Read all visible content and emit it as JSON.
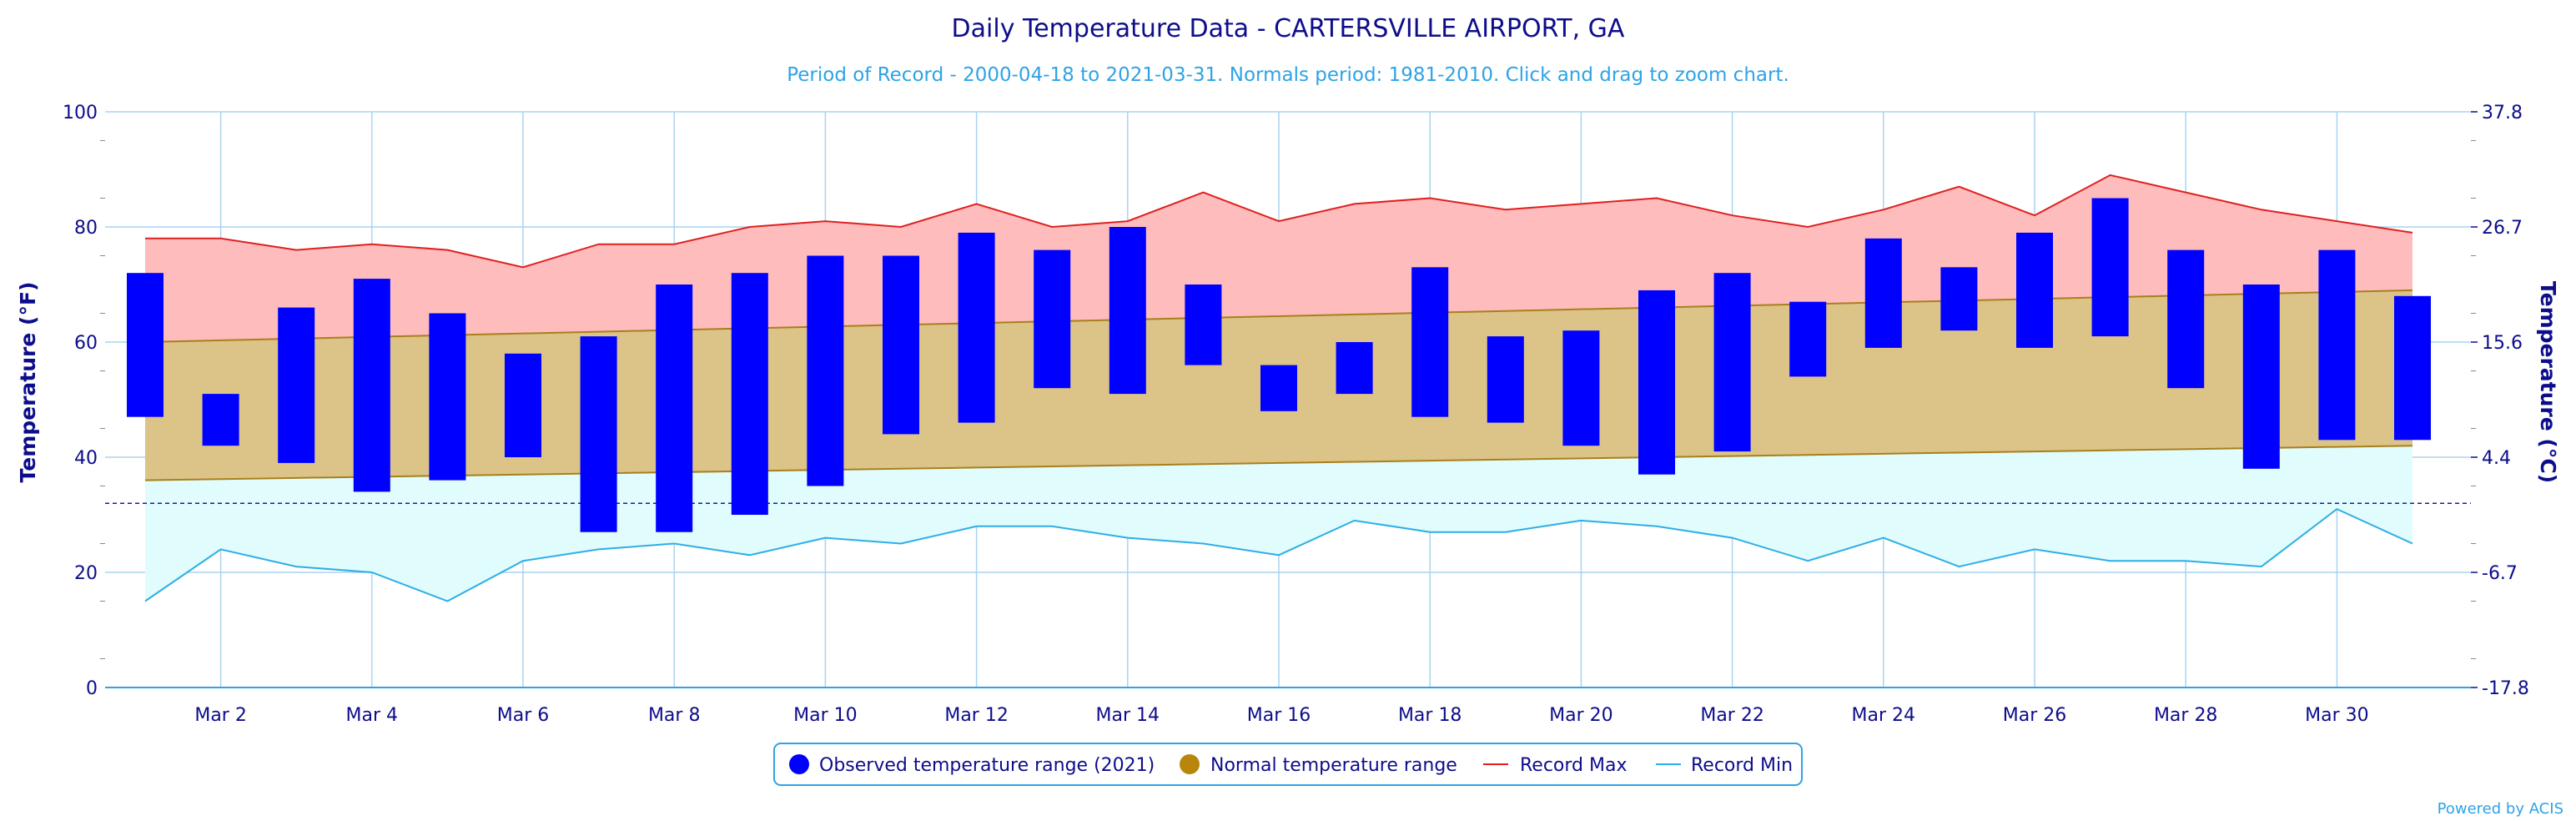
{
  "chart_data": {
    "type": "bar",
    "title": "Daily Temperature Data - CARTERSVILLE AIRPORT, GA",
    "subtitle": "Period of Record - 2000-04-18 to 2021-03-31. Normals period: 1981-2010. Click and drag to zoom chart.",
    "ylabel_left": "Temperature (°F)",
    "ylabel_right": "Temperature (°C)",
    "ylim": [
      0,
      100
    ],
    "y_ticks_left": [
      "0",
      "20",
      "40",
      "60",
      "80",
      "100"
    ],
    "y_ticks_right": [
      "-17.8",
      "-6.7",
      "4.4",
      "15.6",
      "26.7",
      "37.8"
    ],
    "freezing_line_f": 32,
    "days": [
      1,
      2,
      3,
      4,
      5,
      6,
      7,
      8,
      9,
      10,
      11,
      12,
      13,
      14,
      15,
      16,
      17,
      18,
      19,
      20,
      21,
      22,
      23,
      24,
      25,
      26,
      27,
      28,
      29,
      30,
      31
    ],
    "x_tick_labels": [
      {
        "day": 2,
        "label": "Mar 2"
      },
      {
        "day": 4,
        "label": "Mar 4"
      },
      {
        "day": 6,
        "label": "Mar 6"
      },
      {
        "day": 8,
        "label": "Mar 8"
      },
      {
        "day": 10,
        "label": "Mar 10"
      },
      {
        "day": 12,
        "label": "Mar 12"
      },
      {
        "day": 14,
        "label": "Mar 14"
      },
      {
        "day": 16,
        "label": "Mar 16"
      },
      {
        "day": 18,
        "label": "Mar 18"
      },
      {
        "day": 20,
        "label": "Mar 20"
      },
      {
        "day": 22,
        "label": "Mar 22"
      },
      {
        "day": 24,
        "label": "Mar 24"
      },
      {
        "day": 26,
        "label": "Mar 26"
      },
      {
        "day": 28,
        "label": "Mar 28"
      },
      {
        "day": 30,
        "label": "Mar 30"
      }
    ],
    "series": [
      {
        "name": "Observed temperature range (2021)",
        "color": "#0000ff",
        "low": [
          47,
          42,
          39,
          34,
          36,
          40,
          27,
          27,
          30,
          35,
          44,
          46,
          52,
          51,
          56,
          48,
          51,
          47,
          46,
          42,
          37,
          41,
          54,
          59,
          62,
          59,
          61,
          52,
          38,
          43,
          43
        ],
        "high": [
          72,
          51,
          66,
          71,
          65,
          58,
          61,
          70,
          72,
          75,
          75,
          79,
          76,
          80,
          70,
          56,
          60,
          73,
          61,
          62,
          69,
          72,
          67,
          78,
          73,
          79,
          85,
          76,
          70,
          76,
          68
        ]
      },
      {
        "name": "Normal temperature range",
        "color": "#b8860b",
        "low": [
          36,
          36.2,
          36.4,
          36.6,
          36.8,
          37,
          37.2,
          37.4,
          37.6,
          37.8,
          38,
          38.2,
          38.4,
          38.6,
          38.8,
          39,
          39.2,
          39.4,
          39.6,
          39.8,
          40,
          40.2,
          40.4,
          40.6,
          40.8,
          41,
          41.2,
          41.4,
          41.6,
          41.8,
          42
        ],
        "high": [
          60,
          60.3,
          60.6,
          60.9,
          61.2,
          61.5,
          61.8,
          62.1,
          62.4,
          62.7,
          63,
          63.3,
          63.6,
          63.9,
          64.2,
          64.5,
          64.8,
          65.1,
          65.4,
          65.7,
          66,
          66.3,
          66.6,
          66.9,
          67.2,
          67.5,
          67.8,
          68.1,
          68.4,
          68.7,
          69
        ]
      },
      {
        "name": "Record Max",
        "color": "#e02020",
        "values": [
          78,
          78,
          76,
          77,
          76,
          73,
          77,
          77,
          80,
          81,
          80,
          84,
          80,
          81,
          86,
          81,
          84,
          85,
          83,
          84,
          85,
          82,
          80,
          83,
          87,
          82,
          89,
          86,
          83,
          81,
          79
        ]
      },
      {
        "name": "Record Min",
        "color": "#2eaee6",
        "values": [
          15,
          24,
          21,
          20,
          15,
          22,
          24,
          25,
          23,
          26,
          25,
          28,
          28,
          26,
          25,
          23,
          29,
          27,
          27,
          29,
          28,
          26,
          22,
          26,
          21,
          24,
          22,
          22,
          21,
          31,
          25
        ]
      }
    ],
    "legend_position": "bottom-center",
    "credit": "Powered by ACIS"
  }
}
